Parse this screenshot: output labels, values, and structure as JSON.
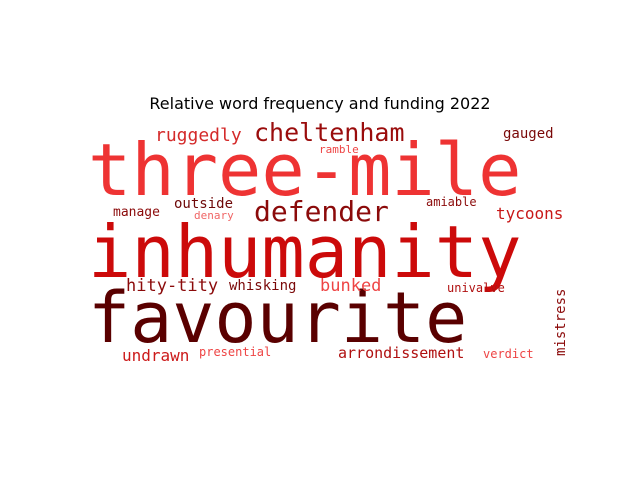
{
  "chart_data": {
    "type": "wordcloud",
    "title": "Relative word frequency and funding 2022",
    "words": [
      {
        "text": "three-mile",
        "weight": 100,
        "color": "#ee3333"
      },
      {
        "text": "inhumanity",
        "weight": 98,
        "color": "#cc0a0a"
      },
      {
        "text": "favourite",
        "weight": 96,
        "color": "#5a0000"
      },
      {
        "text": "defender",
        "weight": 42,
        "color": "#8b0a0a"
      },
      {
        "text": "cheltenham",
        "weight": 38,
        "color": "#9a0c0c"
      },
      {
        "text": "ruggedly",
        "weight": 26,
        "color": "#d42a2a"
      },
      {
        "text": "tycoons",
        "weight": 24,
        "color": "#c81818"
      },
      {
        "text": "bunked",
        "weight": 24,
        "color": "#ee4444"
      },
      {
        "text": "hity-tity",
        "weight": 24,
        "color": "#8b0a0a"
      },
      {
        "text": "undrawn",
        "weight": 22,
        "color": "#cc1a1a"
      },
      {
        "text": "arrondissement",
        "weight": 21,
        "color": "#b01010"
      },
      {
        "text": "gauged",
        "weight": 19,
        "color": "#7a0808"
      },
      {
        "text": "outside",
        "weight": 19,
        "color": "#6e0808"
      },
      {
        "text": "whisking",
        "weight": 19,
        "color": "#7a0808"
      },
      {
        "text": "mistress",
        "weight": 19,
        "color": "#8b0a0a"
      },
      {
        "text": "manage",
        "weight": 17,
        "color": "#8b0a0a"
      },
      {
        "text": "amiable",
        "weight": 16,
        "color": "#8b0a0a"
      },
      {
        "text": "univalve",
        "weight": 16,
        "color": "#b01010"
      },
      {
        "text": "presential",
        "weight": 16,
        "color": "#ee4444"
      },
      {
        "text": "verdict",
        "weight": 16,
        "color": "#ee4444"
      },
      {
        "text": "ramble",
        "weight": 15,
        "color": "#ee4444"
      },
      {
        "text": "denary",
        "weight": 15,
        "color": "#f06666"
      }
    ]
  }
}
